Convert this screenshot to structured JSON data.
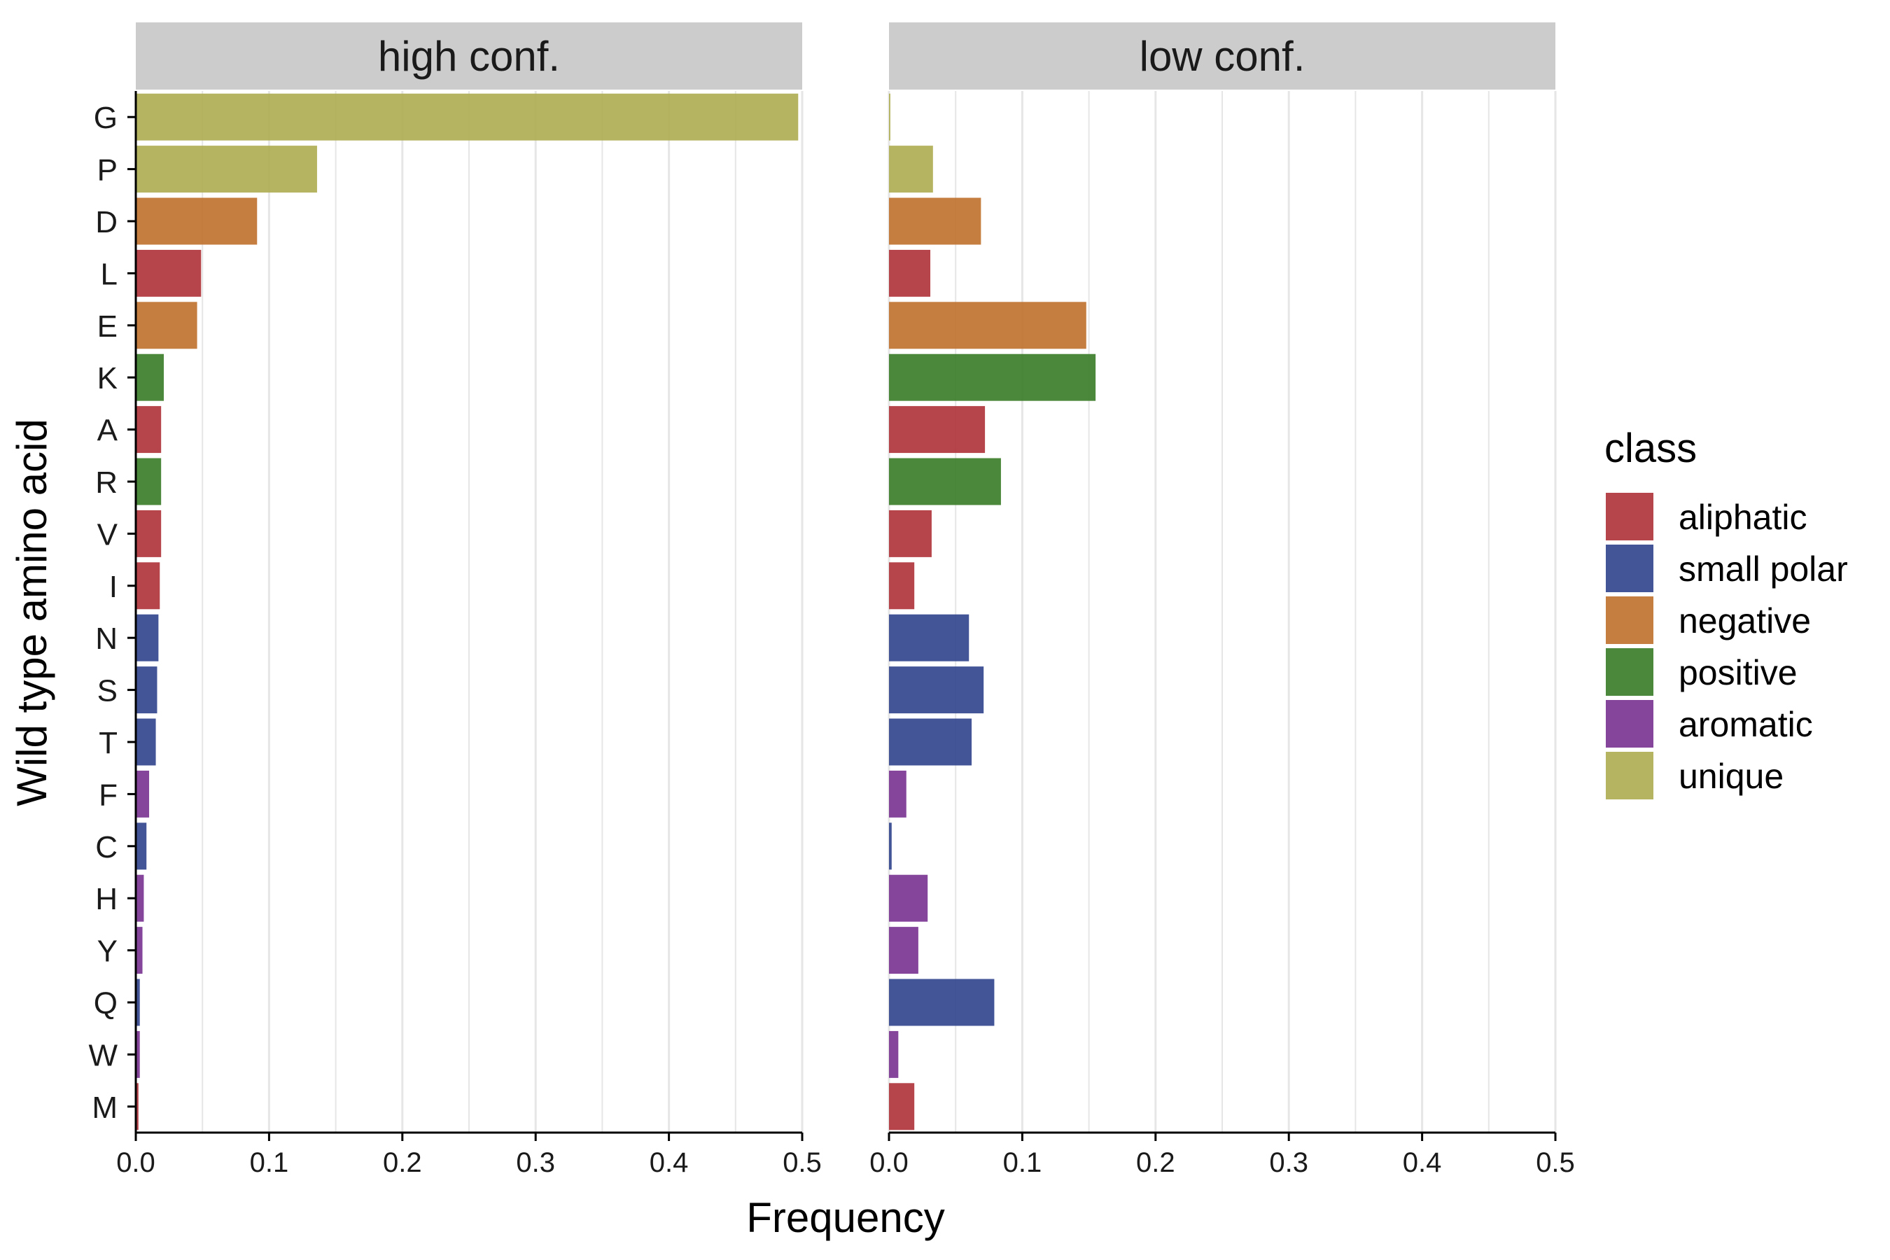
{
  "chart_data": {
    "type": "bar",
    "orientation": "horizontal",
    "xlabel": "Frequency",
    "ylabel": "Wild type amino acid",
    "xlim": [
      0,
      0.5
    ],
    "x_ticks": [
      "0.0",
      "0.1",
      "0.2",
      "0.3",
      "0.4",
      "0.5"
    ],
    "grid": "vertical",
    "categories": [
      "G",
      "P",
      "D",
      "L",
      "E",
      "K",
      "A",
      "R",
      "V",
      "I",
      "N",
      "S",
      "T",
      "F",
      "C",
      "H",
      "Y",
      "Q",
      "W",
      "M"
    ],
    "category_class": [
      "unique",
      "unique",
      "negative",
      "aliphatic",
      "negative",
      "positive",
      "aliphatic",
      "positive",
      "aliphatic",
      "aliphatic",
      "small polar",
      "small polar",
      "small polar",
      "aromatic",
      "small polar",
      "aromatic",
      "aromatic",
      "small polar",
      "aromatic",
      "aliphatic"
    ],
    "panels": [
      {
        "name": "high conf.",
        "values": [
          0.497,
          0.136,
          0.091,
          0.049,
          0.046,
          0.021,
          0.019,
          0.019,
          0.019,
          0.018,
          0.017,
          0.016,
          0.015,
          0.01,
          0.008,
          0.006,
          0.005,
          0.003,
          0.003,
          0.002
        ]
      },
      {
        "name": "low conf.",
        "values": [
          0.001,
          0.033,
          0.069,
          0.031,
          0.148,
          0.155,
          0.072,
          0.084,
          0.032,
          0.019,
          0.06,
          0.071,
          0.062,
          0.013,
          0.002,
          0.029,
          0.022,
          0.079,
          0.007,
          0.019
        ]
      }
    ],
    "legend": {
      "title": "class",
      "position": "right",
      "entries": [
        {
          "label": "aliphatic",
          "color": "#B0343C"
        },
        {
          "label": "small polar",
          "color": "#33478E"
        },
        {
          "label": "negative",
          "color": "#C07230"
        },
        {
          "label": "positive",
          "color": "#3D7E2B"
        },
        {
          "label": "aromatic",
          "color": "#7A3593"
        },
        {
          "label": "unique",
          "color": "#AFAE53"
        }
      ]
    }
  }
}
